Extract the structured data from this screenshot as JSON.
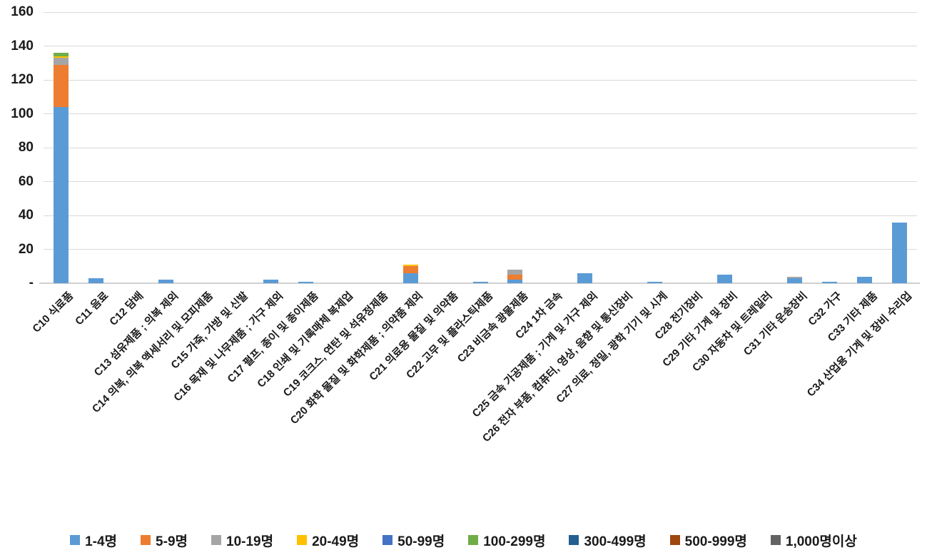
{
  "chart_data": {
    "type": "bar",
    "stacked": true,
    "title": "",
    "xlabel": "",
    "ylabel": "",
    "ylim": [
      0,
      160
    ],
    "ytick_step": 20,
    "yticklabels": [
      "-",
      "20",
      "40",
      "60",
      "80",
      "100",
      "120",
      "140",
      "160"
    ],
    "zero_tick_label": "-",
    "grid": "horizontal",
    "legend_position": "bottom",
    "background_color": "#FFFFFF",
    "gridline_color": "#D9D9D9",
    "text_color": "#1a1a1a",
    "categories": [
      "C10 식료품",
      "C11 음료",
      "C12 담배",
      "C13 섬유제품 ; 의복 제외",
      "C14 의복, 의복 액세서리 및 모피제품",
      "C15 가죽, 가방 및 신발",
      "C16 목재 및 나무제품 ; 가구 제외",
      "C17 펄프, 종이 및 종이제품",
      "C18 인쇄 및 기록매체 복제업",
      "C19 코크스, 연탄 및 석유정제품",
      "C20 화학 물질 및 화학제품 ; 의약품 제외",
      "C21 의료용 물질 및 의약품",
      "C22 고무 및 플라스틱제품",
      "C23 비금속 광물제품",
      "C24 1차 금속",
      "C25 금속 가공제품 ; 기계 및 가구 제외",
      "C26 전자 부품, 컴퓨터, 영상, 음향 및 통신장비",
      "C27 의료, 정밀, 광학 기기 및 시계",
      "C28 전기장비",
      "C29 기타 기계 및 장비",
      "C30 자동차 및 트레일러",
      "C31 기타 운송장비",
      "C32 가구",
      "C33 기타 제품",
      "C34 산업용 기계 및 장비 수리업"
    ],
    "series": [
      {
        "name": "1-4명",
        "color": "#5B9BD5",
        "values": [
          104,
          3,
          0,
          2,
          0,
          0,
          2,
          1,
          0,
          0,
          6,
          0,
          1,
          2,
          0,
          6,
          0,
          1,
          0,
          5,
          0,
          3,
          1,
          4,
          36
        ]
      },
      {
        "name": "5-9명",
        "color": "#ED7D31",
        "values": [
          25,
          0,
          0,
          0,
          0,
          0,
          0,
          0,
          0,
          0,
          4,
          0,
          0,
          3,
          0,
          0,
          0,
          0,
          0,
          0,
          0,
          0,
          0,
          0,
          0
        ]
      },
      {
        "name": "10-19명",
        "color": "#A5A5A5",
        "values": [
          4,
          0,
          0,
          0,
          0,
          0,
          0,
          0,
          0,
          0,
          0,
          0,
          0,
          3,
          0,
          0,
          0,
          0,
          0,
          0,
          0,
          1,
          0,
          0,
          0
        ]
      },
      {
        "name": "20-49명",
        "color": "#FFC000",
        "values": [
          1,
          0,
          0,
          0,
          0,
          0,
          0,
          0,
          0,
          0,
          1,
          0,
          0,
          0,
          0,
          0,
          0,
          0,
          0,
          0,
          0,
          0,
          0,
          0,
          0
        ]
      },
      {
        "name": "50-99명",
        "color": "#4472C4",
        "values": [
          0,
          0,
          0,
          0,
          0,
          0,
          0,
          0,
          0,
          0,
          0,
          0,
          0,
          0,
          0,
          0,
          0,
          0,
          0,
          0,
          0,
          0,
          0,
          0,
          0
        ]
      },
      {
        "name": "100-299명",
        "color": "#70AD47",
        "values": [
          2,
          0,
          0,
          0,
          0,
          0,
          0,
          0,
          0,
          0,
          0,
          0,
          0,
          0,
          0,
          0,
          0,
          0,
          0,
          0,
          0,
          0,
          0,
          0,
          0
        ]
      },
      {
        "name": "300-499명",
        "color": "#255E91",
        "values": [
          0,
          0,
          0,
          0,
          0,
          0,
          0,
          0,
          0,
          0,
          0,
          0,
          0,
          0,
          0,
          0,
          0,
          0,
          0,
          0,
          0,
          0,
          0,
          0,
          0
        ]
      },
      {
        "name": "500-999명",
        "color": "#9E480E",
        "values": [
          0,
          0,
          0,
          0,
          0,
          0,
          0,
          0,
          0,
          0,
          0,
          0,
          0,
          0,
          0,
          0,
          0,
          0,
          0,
          0,
          0,
          0,
          0,
          0,
          0
        ]
      },
      {
        "name": "1,000명이상",
        "color": "#636363",
        "values": [
          0,
          0,
          0,
          0,
          0,
          0,
          0,
          0,
          0,
          0,
          0,
          0,
          0,
          0,
          0,
          0,
          0,
          0,
          0,
          0,
          0,
          0,
          0,
          0,
          0
        ]
      }
    ]
  }
}
